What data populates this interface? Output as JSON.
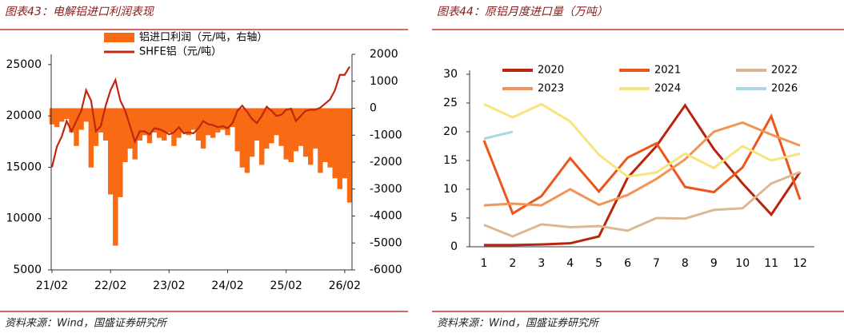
{
  "chart_data": [
    {
      "type": "combo",
      "title": "图表43：电解铝进口利润表现",
      "source": "资料来源：Wind，国盛证券研究所",
      "x": [
        "21/02",
        "21/03",
        "21/04",
        "21/05",
        "21/06",
        "21/07",
        "21/08",
        "21/09",
        "21/10",
        "21/11",
        "21/12",
        "22/01",
        "22/02",
        "22/03",
        "22/04",
        "22/05",
        "22/06",
        "22/07",
        "22/08",
        "22/09",
        "22/10",
        "22/11",
        "22/12",
        "23/01",
        "23/02",
        "23/03",
        "23/04",
        "23/05",
        "23/06",
        "23/07",
        "23/08",
        "23/09",
        "23/10",
        "23/11",
        "23/12",
        "24/01",
        "24/02",
        "24/03",
        "24/04",
        "24/05",
        "24/06",
        "24/07",
        "24/08",
        "24/09",
        "24/10",
        "24/11",
        "24/12",
        "25/01",
        "25/02",
        "25/03",
        "25/04",
        "25/05",
        "25/06",
        "25/07",
        "25/08",
        "25/09",
        "25/10",
        "25/11",
        "25/12",
        "26/01",
        "26/02",
        "26/03"
      ],
      "xticks": [
        "21/02",
        "22/02",
        "23/02",
        "24/02",
        "25/02",
        "26/02"
      ],
      "ylim": [
        5000,
        26000
      ],
      "yticks": [
        5000,
        10000,
        15000,
        20000,
        25000
      ],
      "y2lim": [
        -6000,
        2000
      ],
      "y2ticks": [
        -6000,
        -5000,
        -4000,
        -3000,
        -2000,
        -1000,
        0,
        1000,
        2000
      ],
      "series": [
        {
          "name": "铝进口利润（元/吨，右轴）",
          "mark": "bar",
          "axis": "y2",
          "color": "#f86a14",
          "values": [
            -600,
            -700,
            -500,
            -400,
            -900,
            -1400,
            -800,
            -500,
            -2200,
            -1400,
            -900,
            -1200,
            -3200,
            -5100,
            -3300,
            -2000,
            -1500,
            -1900,
            -1200,
            -1000,
            -1300,
            -900,
            -1100,
            -1200,
            -900,
            -1400,
            -1100,
            -900,
            -1000,
            -800,
            -1200,
            -1500,
            -1000,
            -1100,
            -900,
            -800,
            -1000,
            -700,
            -1600,
            -2200,
            -2400,
            -1800,
            -1200,
            -2100,
            -1500,
            -1300,
            -1000,
            -1400,
            -1900,
            -2000,
            -1600,
            -1400,
            -1800,
            -2100,
            -1500,
            -2400,
            -2000,
            -2200,
            -2600,
            -3000,
            -2600,
            -3500
          ]
        },
        {
          "name": "SHFE铝（元/吨）",
          "mark": "line",
          "color": "#c0270f",
          "values": [
            15000,
            17000,
            18000,
            19500,
            18500,
            19500,
            20500,
            22500,
            21500,
            18500,
            19000,
            21000,
            22500,
            23500,
            21500,
            20500,
            19000,
            17500,
            18500,
            18500,
            18200,
            18800,
            18700,
            18500,
            18200,
            18400,
            18900,
            18300,
            18400,
            18300,
            18800,
            19500,
            19200,
            19100,
            18900,
            19000,
            18800,
            19300,
            20500,
            21000,
            20400,
            19700,
            19300,
            20000,
            20900,
            20500,
            20000,
            20100,
            20600,
            20700,
            19500,
            20000,
            20500,
            20600,
            20600,
            20800,
            21200,
            21600,
            22500,
            24000,
            24000,
            24800
          ]
        }
      ]
    },
    {
      "type": "line",
      "title": "图表44：原铝月度进口量（万吨）",
      "source": "资料来源：Wind，国盛证券研究所",
      "categories": [
        "1",
        "2",
        "3",
        "4",
        "5",
        "6",
        "7",
        "8",
        "9",
        "10",
        "11",
        "12"
      ],
      "ylim": [
        0,
        30
      ],
      "yticks": [
        0,
        5,
        10,
        15,
        20,
        25,
        30
      ],
      "series": [
        {
          "name": "2020",
          "color": "#b8240c",
          "values": [
            0.3,
            0.3,
            0.4,
            0.6,
            1.8,
            12,
            17.5,
            24.6,
            17,
            11,
            5.6,
            13
          ]
        },
        {
          "name": "2021",
          "color": "#ec561a",
          "values": [
            18.5,
            5.8,
            8.8,
            15.4,
            9.6,
            15.5,
            18,
            10.4,
            9.5,
            13.8,
            22.7,
            8.2
          ]
        },
        {
          "name": "2022",
          "color": "#dcb892",
          "values": [
            3.8,
            1.8,
            3.9,
            3.4,
            3.6,
            2.8,
            5.0,
            4.9,
            6.4,
            6.7,
            11,
            13
          ]
        },
        {
          "name": "2023",
          "color": "#f39457",
          "values": [
            7.2,
            7.5,
            7.2,
            10,
            7.3,
            9,
            11.8,
            15.2,
            20,
            21.6,
            19.5,
            17.6
          ]
        },
        {
          "name": "2024",
          "color": "#f6e47c",
          "values": [
            24.8,
            22.5,
            24.8,
            21.8,
            16,
            12.2,
            12.9,
            16.2,
            13.7,
            17.5,
            15,
            16.2
          ]
        },
        {
          "name": "2026",
          "color": "#acd6e6",
          "values": [
            18.8,
            20,
            null,
            null,
            null,
            null,
            null,
            null,
            null,
            null,
            null,
            null
          ]
        }
      ]
    }
  ]
}
